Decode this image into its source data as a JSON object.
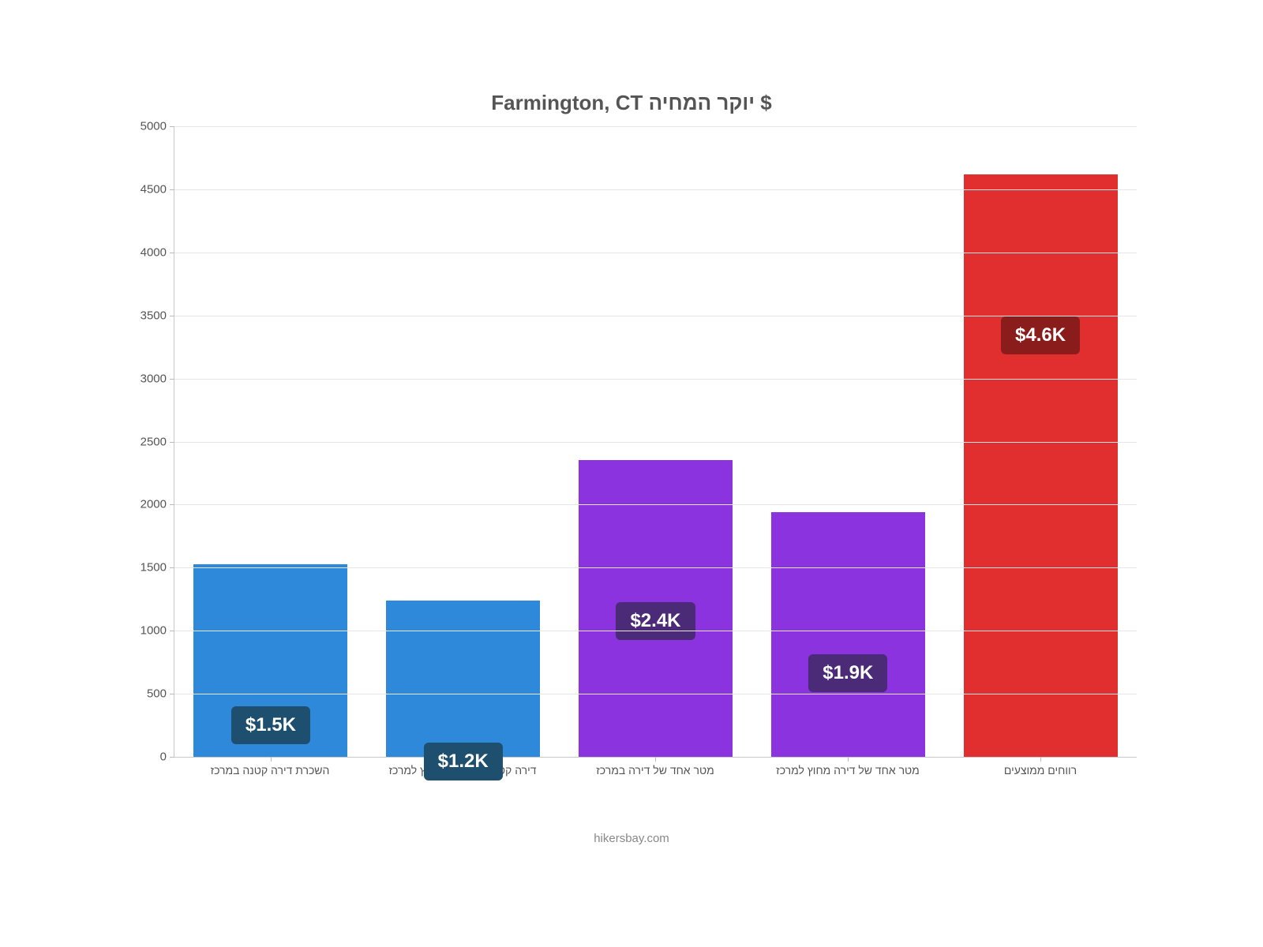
{
  "chart": {
    "type": "bar",
    "title": "Farmington, CT יוקר המחיה $",
    "title_fontsize": 26,
    "title_color": "#555555",
    "background_color": "#ffffff",
    "grid_color": "#e6e6e6",
    "axis_color": "#c8c8c8",
    "tick_font_color": "#555555",
    "tick_fontsize": 15,
    "xlabel_fontsize": 14,
    "ylim": [
      0,
      5000
    ],
    "ytick_step": 500,
    "yticks": [
      0,
      500,
      1000,
      1500,
      2000,
      2500,
      3000,
      3500,
      4000,
      4500,
      5000
    ],
    "bar_width_ratio": 0.8,
    "value_label_fontsize": 24,
    "categories": [
      "השכרת דירה קטנה במרכז",
      "דירה קטנה השכרות מחוץ למרכז",
      "מטר אחד של דירה במרכז",
      "מטר אחד של דירה מחוץ למרכז",
      "רווחים ממוצעים"
    ],
    "values": [
      1530,
      1240,
      2350,
      1940,
      4620
    ],
    "value_labels": [
      "$1.5K",
      "$1.2K",
      "$2.4K",
      "$1.9K",
      "$4.6K"
    ],
    "bar_colors": [
      "#2f89db",
      "#2f89db",
      "#8a33de",
      "#8a33de",
      "#e12e2f"
    ],
    "label_bg_colors": [
      "#1f4f6e",
      "#1f4f6e",
      "#4b2a78",
      "#4b2a78",
      "#8a1c1c"
    ],
    "label_offset_from_top": 180,
    "attribution": "hikersbay.com",
    "attribution_color": "#888888"
  }
}
